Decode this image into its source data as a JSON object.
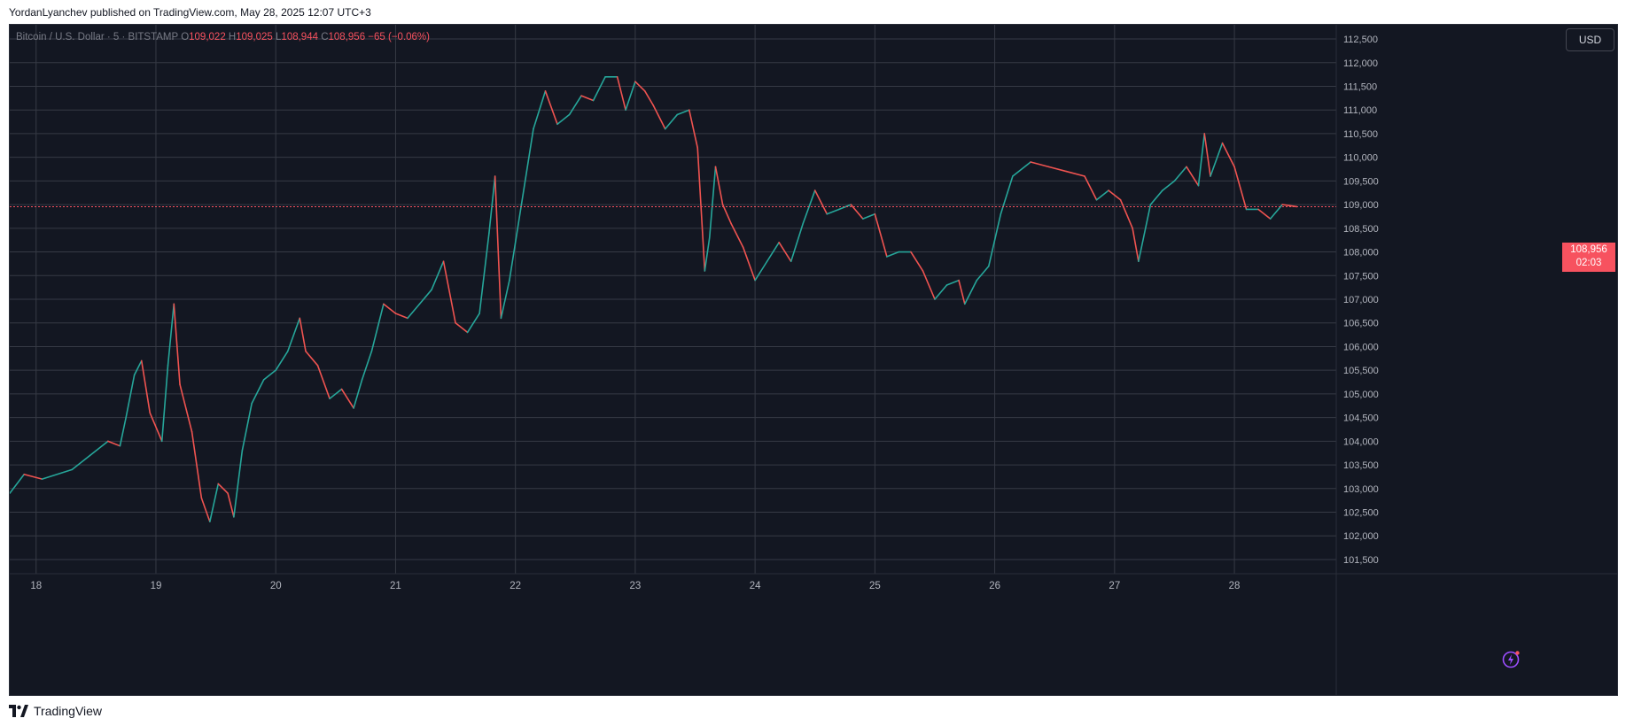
{
  "header": {
    "published_text": "YordanLyanchev published on TradingView.com, May 28, 2025 12:07 UTC+3"
  },
  "legend": {
    "symbol": "Bitcoin / U.S. Dollar · 5 · BITSTAMP",
    "open_label": "O",
    "open": "109,022",
    "high_label": "H",
    "high": "109,025",
    "low_label": "L",
    "low": "108,944",
    "close_label": "C",
    "close": "108,956",
    "change": "−65 (−0.06%)"
  },
  "currency_button": "USD",
  "last_price": {
    "price": "108,956",
    "countdown": "02:03"
  },
  "footer": {
    "brand": "TradingView"
  },
  "colors": {
    "background": "#131722",
    "grid": "#363a45",
    "up": "#26a69a",
    "down": "#ef5350",
    "last_price": "#f7525f",
    "text": "#b2b5be"
  },
  "chart_data": {
    "type": "line",
    "title": "",
    "xlabel": "",
    "ylabel": "",
    "x_ticks": [
      "18",
      "19",
      "20",
      "21",
      "22",
      "23",
      "24",
      "25",
      "26",
      "27",
      "28"
    ],
    "y_ticks": [
      "101,500",
      "102,000",
      "102,500",
      "103,000",
      "103,500",
      "104,000",
      "104,500",
      "105,000",
      "105,500",
      "106,000",
      "106,500",
      "107,000",
      "107,500",
      "108,000",
      "108,500",
      "109,000",
      "109,500",
      "110,000",
      "110,500",
      "111,000",
      "111,500",
      "112,000",
      "112,500"
    ],
    "xlim": [
      17.78,
      28.85
    ],
    "ylim": [
      101200,
      112800
    ],
    "grid": true,
    "last_price": 108956,
    "series": [
      {
        "x": [
          17.78,
          17.9,
          18.05,
          18.3,
          18.45,
          18.6,
          18.7,
          18.75,
          18.82,
          18.88,
          18.95,
          19.05,
          19.1,
          19.15,
          19.2,
          19.3,
          19.38,
          19.45,
          19.52,
          19.6,
          19.65,
          19.72,
          19.8,
          19.9,
          20.0,
          20.1,
          20.2,
          20.25,
          20.35,
          20.45,
          20.55,
          20.65,
          20.72,
          20.8,
          20.9,
          21.0,
          21.1,
          21.2,
          21.3,
          21.4,
          21.5,
          21.6,
          21.7,
          21.78,
          21.83,
          21.88,
          21.95,
          22.05,
          22.15,
          22.25,
          22.35,
          22.45,
          22.55,
          22.65,
          22.75,
          22.85,
          22.92,
          23.0,
          23.08,
          23.15,
          23.25,
          23.35,
          23.45,
          23.52,
          23.58,
          23.62,
          23.67,
          23.73,
          23.8,
          23.9,
          24.0,
          24.1,
          24.2,
          24.3,
          24.4,
          24.5,
          24.6,
          24.7,
          24.8,
          24.9,
          25.0,
          25.1,
          25.2,
          25.3,
          25.4,
          25.5,
          25.6,
          25.7,
          25.75,
          25.85,
          25.95,
          26.05,
          26.15,
          26.3,
          26.45,
          26.6,
          26.75,
          26.85,
          26.95,
          27.05,
          27.15,
          27.2,
          27.3,
          27.4,
          27.5,
          27.6,
          27.7,
          27.75,
          27.8,
          27.9,
          28.0,
          28.1,
          28.2,
          28.3,
          28.4,
          28.52
        ],
        "y": [
          102900,
          103300,
          103200,
          103400,
          103700,
          104000,
          103900,
          104500,
          105400,
          105700,
          104600,
          104000,
          105600,
          106900,
          105200,
          104200,
          102800,
          102300,
          103100,
          102900,
          102400,
          103800,
          104800,
          105300,
          105500,
          105900,
          106600,
          105900,
          105600,
          104900,
          105100,
          104700,
          105300,
          105900,
          106900,
          106700,
          106600,
          106900,
          107200,
          107800,
          106500,
          106300,
          106700,
          108400,
          109600,
          106600,
          107400,
          109000,
          110600,
          111400,
          110700,
          110900,
          111300,
          111200,
          111700,
          111700,
          111000,
          111600,
          111400,
          111100,
          110600,
          110900,
          111000,
          110200,
          107600,
          108300,
          109800,
          109000,
          108600,
          108100,
          107400,
          107800,
          108200,
          107800,
          108600,
          109300,
          108800,
          108900,
          109000,
          108700,
          108800,
          107900,
          108000,
          108000,
          107600,
          107000,
          107300,
          107400,
          106900,
          107400,
          107700,
          108800,
          109600,
          109900,
          109800,
          109700,
          109600,
          109100,
          109300,
          109100,
          108500,
          107800,
          109000,
          109300,
          109500,
          109800,
          109400,
          110500,
          109600,
          110300,
          109800,
          108900,
          108900,
          108700,
          109000,
          108956
        ]
      }
    ]
  }
}
